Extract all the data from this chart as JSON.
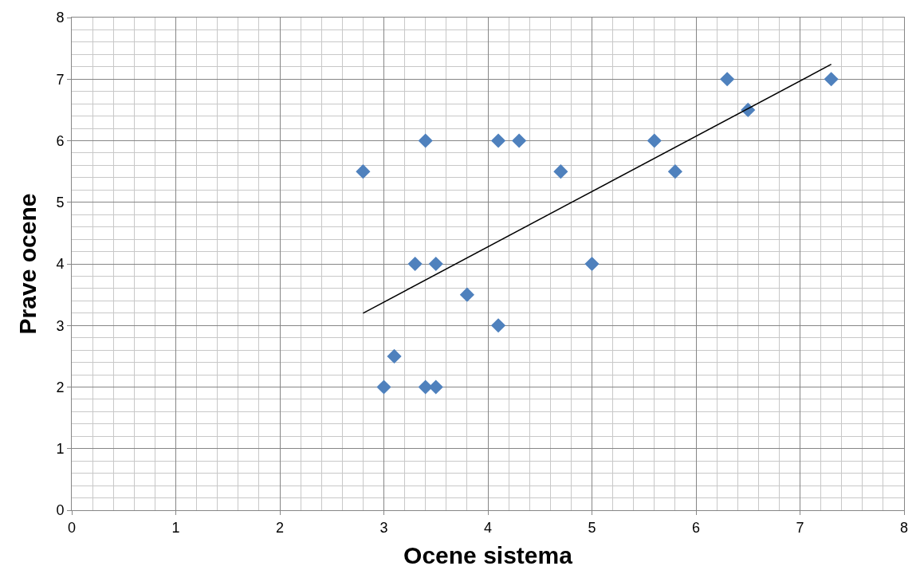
{
  "chart_data": {
    "type": "scatter",
    "xlabel": "Ocene sistema",
    "ylabel": "Prave ocene",
    "xlim": [
      0,
      8
    ],
    "ylim": [
      0,
      8
    ],
    "xticks": [
      0,
      1,
      2,
      3,
      4,
      5,
      6,
      7,
      8
    ],
    "yticks": [
      0,
      1,
      2,
      3,
      4,
      5,
      6,
      7,
      8
    ],
    "grid": true,
    "legend": false,
    "series": [
      {
        "color": "#4f81bd",
        "marker": "diamond",
        "x": [
          2.8,
          3.4,
          4.1,
          4.3,
          4.7,
          5.6,
          5.8,
          6.3,
          6.5,
          7.3,
          3.3,
          3.5,
          5.0,
          3.8,
          4.1,
          3.1,
          3.0,
          3.4,
          3.5
        ],
        "values": [
          5.5,
          6,
          6,
          6,
          5.5,
          6,
          5.5,
          7,
          6.5,
          7,
          4,
          4,
          4,
          3.5,
          3,
          2.5,
          2,
          2,
          2
        ]
      },
      {
        "type": "line",
        "color": "#000000",
        "marker": "none",
        "line_style": "solid",
        "x": [
          2.8,
          7.3
        ],
        "values": [
          3.2,
          7.24
        ]
      }
    ]
  }
}
